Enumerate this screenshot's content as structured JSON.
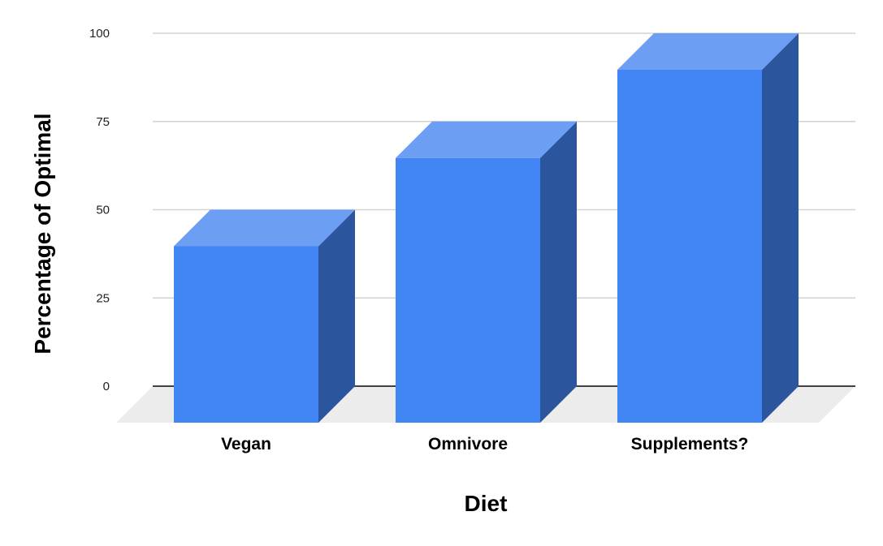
{
  "chart_data": {
    "type": "bar",
    "variant": "3d-column",
    "title": "",
    "xlabel": "Diet",
    "ylabel": "Percentage of Optimal",
    "categories": [
      "Vegan",
      "Omnivore",
      "Supplements?"
    ],
    "values": [
      50,
      75,
      100
    ],
    "yticks": [
      0,
      25,
      50,
      75,
      100
    ],
    "ylim": [
      0,
      100
    ],
    "grid": true,
    "legend": "none"
  },
  "colors": {
    "background": "#FFFFFF",
    "bar_front": "#4285F4",
    "bar_top": "#6C9EF4",
    "bar_side": "#2B559D",
    "floor": "#ECECEC",
    "gridline": "#D2D2D2",
    "zero_axis_line": "#424242",
    "tick_text": "#222222",
    "label_text": "#000000"
  }
}
